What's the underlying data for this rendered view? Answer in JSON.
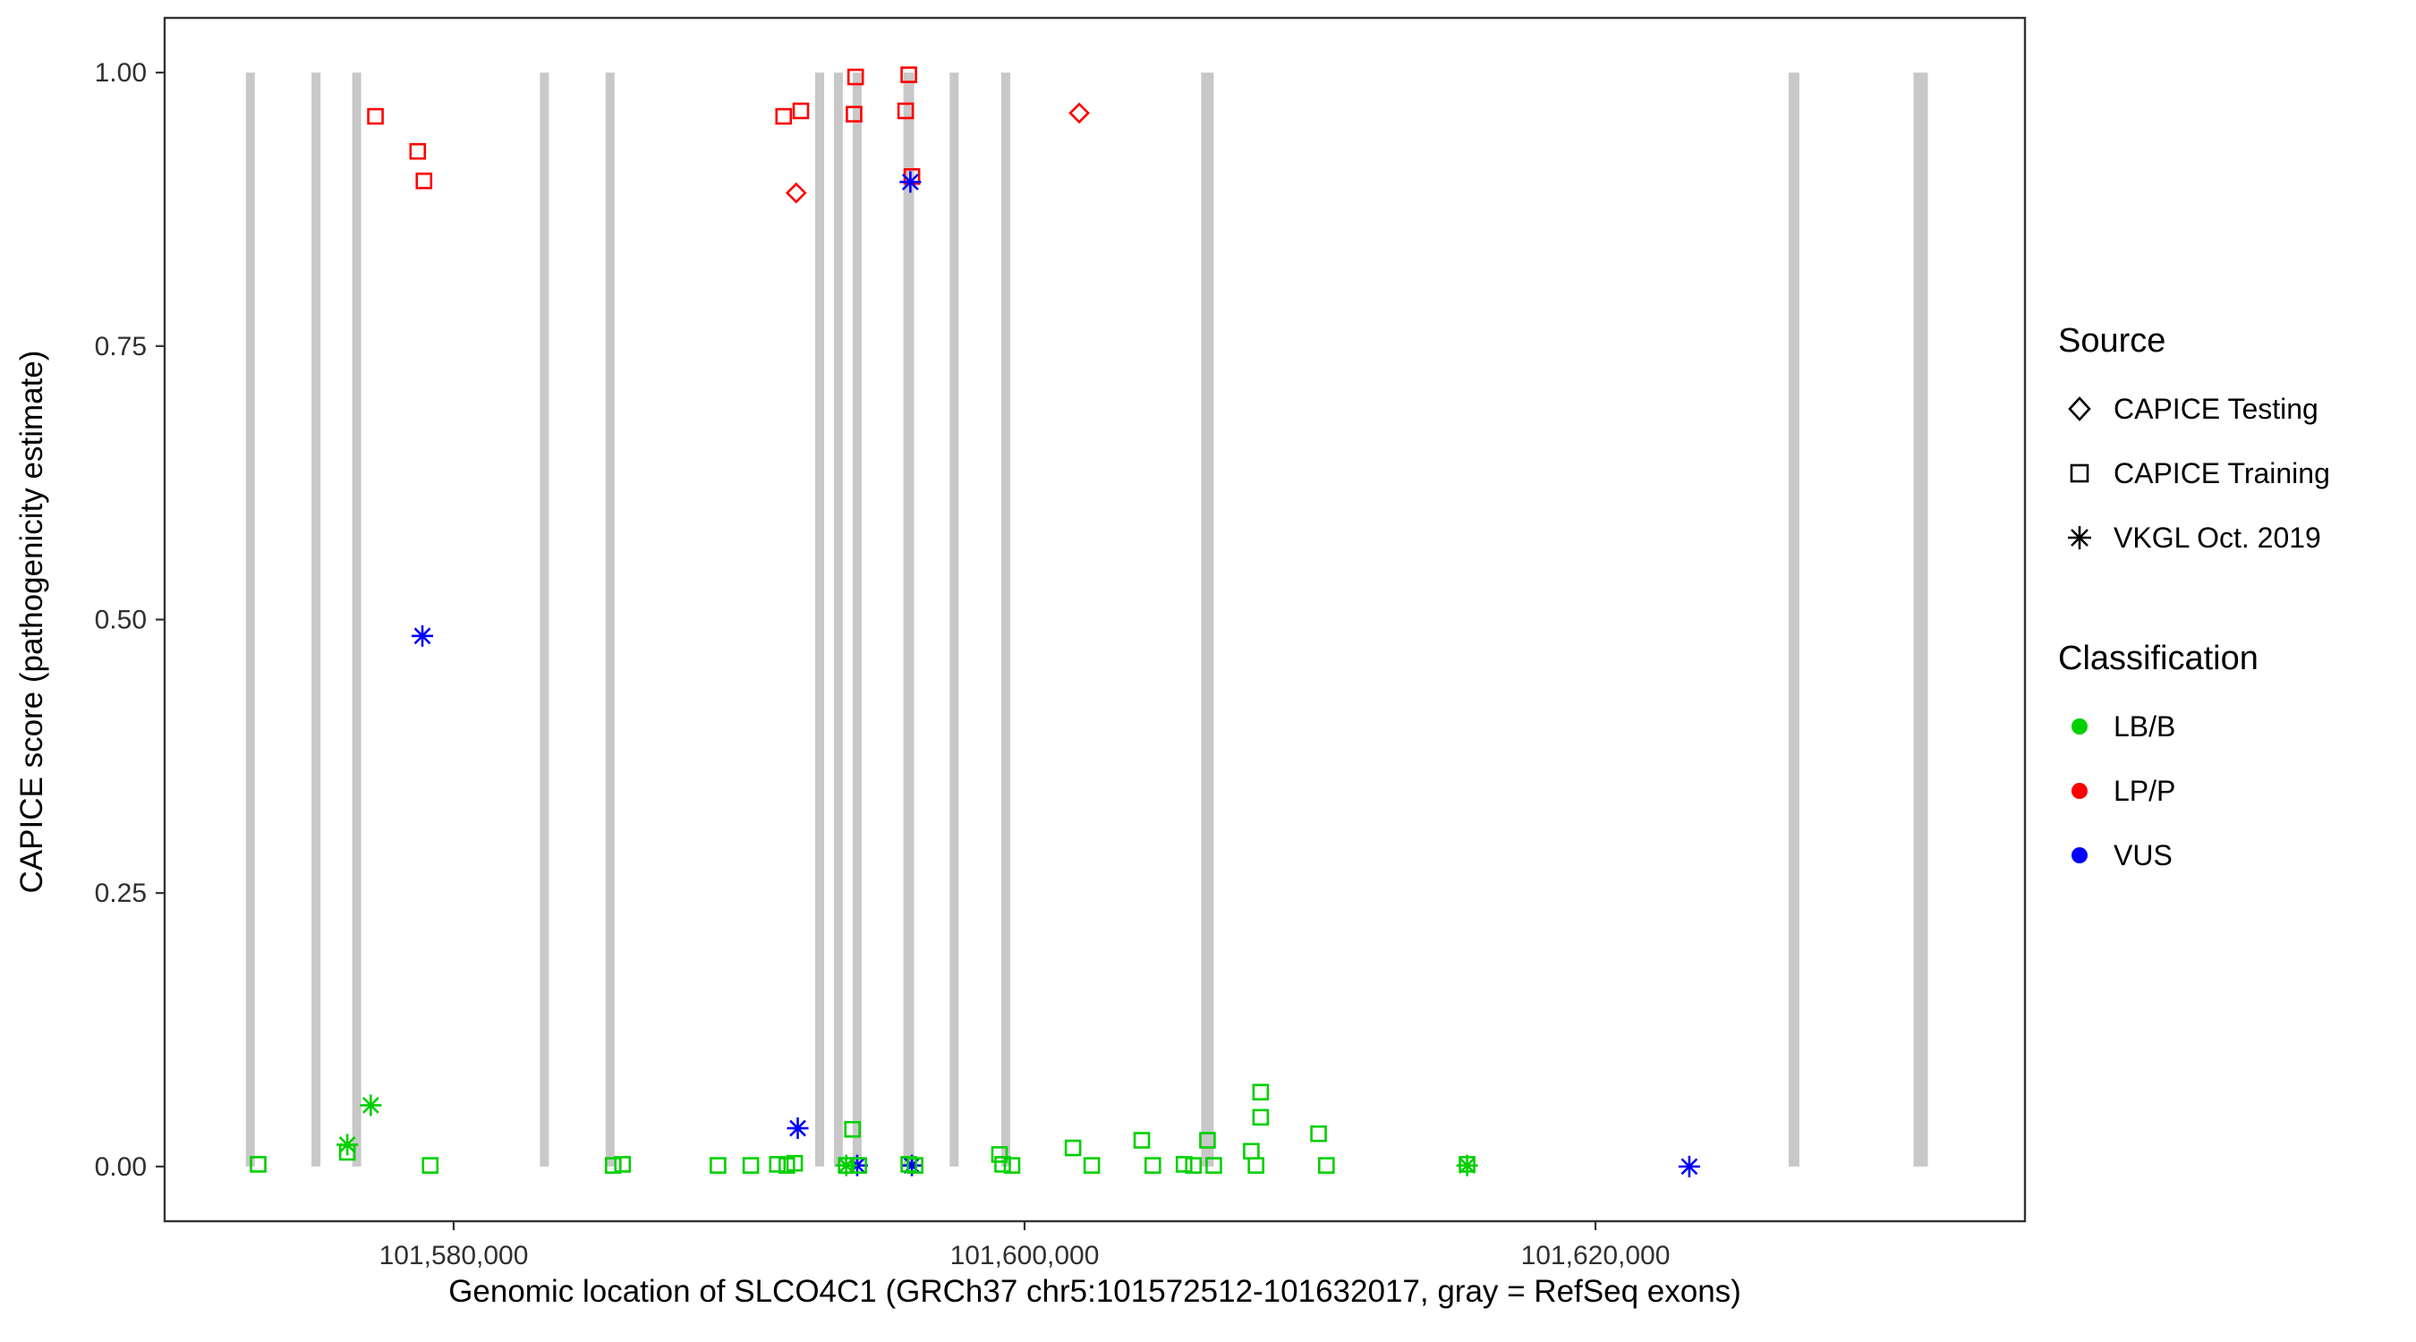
{
  "chart_data": {
    "type": "scatter",
    "title": "",
    "xlabel": "Genomic location of SLCO4C1 (GRCh37 chr5:101572512-101632017, gray = RefSeq exons)",
    "ylabel": "CAPICE score (pathogenicity estimate)",
    "xlim": [
      101569875,
      101635047
    ],
    "ylim": [
      -0.05,
      1.05
    ],
    "grid": false,
    "panel_border_color": "#333333",
    "exon_color": "#c8c8c8",
    "x_ticks": [
      {
        "value": 101580000,
        "label": "101,580,000"
      },
      {
        "value": 101600000,
        "label": "101,600,000"
      },
      {
        "value": 101620000,
        "label": "101,620,000"
      }
    ],
    "y_ticks": [
      {
        "value": 0.0,
        "label": "0.00"
      },
      {
        "value": 0.25,
        "label": "0.25"
      },
      {
        "value": 0.5,
        "label": "0.50"
      },
      {
        "value": 0.75,
        "label": "0.75"
      },
      {
        "value": 1.0,
        "label": "1.00"
      }
    ],
    "exons": [
      {
        "pos": 101572877,
        "w": 10
      },
      {
        "pos": 101575178,
        "w": 10
      },
      {
        "pos": 101576603,
        "w": 10
      },
      {
        "pos": 101583178,
        "w": 10
      },
      {
        "pos": 101585479,
        "w": 10
      },
      {
        "pos": 101592821,
        "w": 10
      },
      {
        "pos": 101593478,
        "w": 10
      },
      {
        "pos": 101594136,
        "w": 10
      },
      {
        "pos": 101595944,
        "w": 12
      },
      {
        "pos": 101597533,
        "w": 10
      },
      {
        "pos": 101599341,
        "w": 10
      },
      {
        "pos": 101606409,
        "w": 14
      },
      {
        "pos": 101626955,
        "w": 12
      },
      {
        "pos": 101631393,
        "w": 16
      }
    ],
    "classification_colors": {
      "LB/B": "#00d000",
      "LP/P": "#ff0000",
      "VUS": "#0000ff"
    },
    "source_shapes": {
      "CAPICE Testing": "diamond",
      "CAPICE Training": "square",
      "VKGL Oct. 2019": "asterisk"
    },
    "points": [
      {
        "x": 101577260,
        "y": 0.96,
        "source": "CAPICE Training",
        "class": "LP/P"
      },
      {
        "x": 101578740,
        "y": 0.928,
        "source": "CAPICE Training",
        "class": "LP/P"
      },
      {
        "x": 101578959,
        "y": 0.901,
        "source": "CAPICE Training",
        "class": "LP/P"
      },
      {
        "x": 101591561,
        "y": 0.96,
        "source": "CAPICE Training",
        "class": "LP/P"
      },
      {
        "x": 101592164,
        "y": 0.965,
        "source": "CAPICE Training",
        "class": "LP/P"
      },
      {
        "x": 101594027,
        "y": 0.962,
        "source": "CAPICE Training",
        "class": "LP/P"
      },
      {
        "x": 101594082,
        "y": 0.996,
        "source": "CAPICE Training",
        "class": "LP/P"
      },
      {
        "x": 101595835,
        "y": 0.965,
        "source": "CAPICE Training",
        "class": "LP/P"
      },
      {
        "x": 101595944,
        "y": 0.998,
        "source": "CAPICE Training",
        "class": "LP/P"
      },
      {
        "x": 101596054,
        "y": 0.905,
        "source": "CAPICE Training",
        "class": "LP/P"
      },
      {
        "x": 101592000,
        "y": 0.89,
        "source": "CAPICE Testing",
        "class": "LP/P"
      },
      {
        "x": 101601916,
        "y": 0.963,
        "source": "CAPICE Testing",
        "class": "LP/P"
      },
      {
        "x": 101578904,
        "y": 0.485,
        "source": "VKGL Oct. 2019",
        "class": "VUS"
      },
      {
        "x": 101596000,
        "y": 0.9,
        "source": "VKGL Oct. 2019",
        "class": "VUS"
      },
      {
        "x": 101592054,
        "y": 0.035,
        "source": "VKGL Oct. 2019",
        "class": "VUS"
      },
      {
        "x": 101594136,
        "y": 0.001,
        "source": "VKGL Oct. 2019",
        "class": "VUS"
      },
      {
        "x": 101596054,
        "y": 0.001,
        "source": "VKGL Oct. 2019",
        "class": "VUS"
      },
      {
        "x": 101623288,
        "y": 0.0,
        "source": "VKGL Oct. 2019",
        "class": "VUS"
      },
      {
        "x": 101576274,
        "y": 0.02,
        "source": "VKGL Oct. 2019",
        "class": "LB/B"
      },
      {
        "x": 101577096,
        "y": 0.056,
        "source": "VKGL Oct. 2019",
        "class": "LB/B"
      },
      {
        "x": 101593753,
        "y": 0.001,
        "source": "VKGL Oct. 2019",
        "class": "LB/B"
      },
      {
        "x": 101615504,
        "y": 0.001,
        "source": "VKGL Oct. 2019",
        "class": "LB/B"
      },
      {
        "x": 101573151,
        "y": 0.002,
        "source": "CAPICE Training",
        "class": "LB/B"
      },
      {
        "x": 101576274,
        "y": 0.013,
        "source": "CAPICE Training",
        "class": "LB/B"
      },
      {
        "x": 101579178,
        "y": 0.001,
        "source": "CAPICE Training",
        "class": "LB/B"
      },
      {
        "x": 101585589,
        "y": 0.001,
        "source": "CAPICE Training",
        "class": "LB/B"
      },
      {
        "x": 101585918,
        "y": 0.002,
        "source": "CAPICE Training",
        "class": "LB/B"
      },
      {
        "x": 101589260,
        "y": 0.001,
        "source": "CAPICE Training",
        "class": "LB/B"
      },
      {
        "x": 101590411,
        "y": 0.001,
        "source": "CAPICE Training",
        "class": "LB/B"
      },
      {
        "x": 101591342,
        "y": 0.002,
        "source": "CAPICE Training",
        "class": "LB/B"
      },
      {
        "x": 101591671,
        "y": 0.001,
        "source": "CAPICE Training",
        "class": "LB/B"
      },
      {
        "x": 101591945,
        "y": 0.003,
        "source": "CAPICE Training",
        "class": "LB/B"
      },
      {
        "x": 101593972,
        "y": 0.034,
        "source": "CAPICE Training",
        "class": "LB/B"
      },
      {
        "x": 101593753,
        "y": 0.001,
        "source": "CAPICE Training",
        "class": "LB/B"
      },
      {
        "x": 101594191,
        "y": 0.001,
        "source": "CAPICE Training",
        "class": "LB/B"
      },
      {
        "x": 101595944,
        "y": 0.002,
        "source": "CAPICE Training",
        "class": "LB/B"
      },
      {
        "x": 101596164,
        "y": 0.001,
        "source": "CAPICE Training",
        "class": "LB/B"
      },
      {
        "x": 101599122,
        "y": 0.011,
        "source": "CAPICE Training",
        "class": "LB/B"
      },
      {
        "x": 101599232,
        "y": 0.002,
        "source": "CAPICE Training",
        "class": "LB/B"
      },
      {
        "x": 101599560,
        "y": 0.001,
        "source": "CAPICE Training",
        "class": "LB/B"
      },
      {
        "x": 101601697,
        "y": 0.017,
        "source": "CAPICE Training",
        "class": "LB/B"
      },
      {
        "x": 101602355,
        "y": 0.001,
        "source": "CAPICE Training",
        "class": "LB/B"
      },
      {
        "x": 101604108,
        "y": 0.024,
        "source": "CAPICE Training",
        "class": "LB/B"
      },
      {
        "x": 101604492,
        "y": 0.001,
        "source": "CAPICE Training",
        "class": "LB/B"
      },
      {
        "x": 101605588,
        "y": 0.002,
        "source": "CAPICE Training",
        "class": "LB/B"
      },
      {
        "x": 101605916,
        "y": 0.001,
        "source": "CAPICE Training",
        "class": "LB/B"
      },
      {
        "x": 101606409,
        "y": 0.024,
        "source": "CAPICE Training",
        "class": "LB/B"
      },
      {
        "x": 101606628,
        "y": 0.001,
        "source": "CAPICE Training",
        "class": "LB/B"
      },
      {
        "x": 101607944,
        "y": 0.014,
        "source": "CAPICE Training",
        "class": "LB/B"
      },
      {
        "x": 101608108,
        "y": 0.001,
        "source": "CAPICE Training",
        "class": "LB/B"
      },
      {
        "x": 101608272,
        "y": 0.068,
        "source": "CAPICE Training",
        "class": "LB/B"
      },
      {
        "x": 101608272,
        "y": 0.045,
        "source": "CAPICE Training",
        "class": "LB/B"
      },
      {
        "x": 101610300,
        "y": 0.03,
        "source": "CAPICE Training",
        "class": "LB/B"
      },
      {
        "x": 101610574,
        "y": 0.001,
        "source": "CAPICE Training",
        "class": "LB/B"
      },
      {
        "x": 101615504,
        "y": 0.002,
        "source": "CAPICE Training",
        "class": "LB/B"
      }
    ],
    "legend": {
      "source_title": "Source",
      "source_items": [
        {
          "label": "CAPICE Testing",
          "shape": "diamond"
        },
        {
          "label": "CAPICE Training",
          "shape": "square"
        },
        {
          "label": "VKGL Oct. 2019",
          "shape": "asterisk"
        }
      ],
      "class_title": "Classification",
      "class_items": [
        {
          "label": "LB/B",
          "color": "#00d000"
        },
        {
          "label": "LP/P",
          "color": "#ff0000"
        },
        {
          "label": "VUS",
          "color": "#0000ff"
        }
      ]
    }
  }
}
